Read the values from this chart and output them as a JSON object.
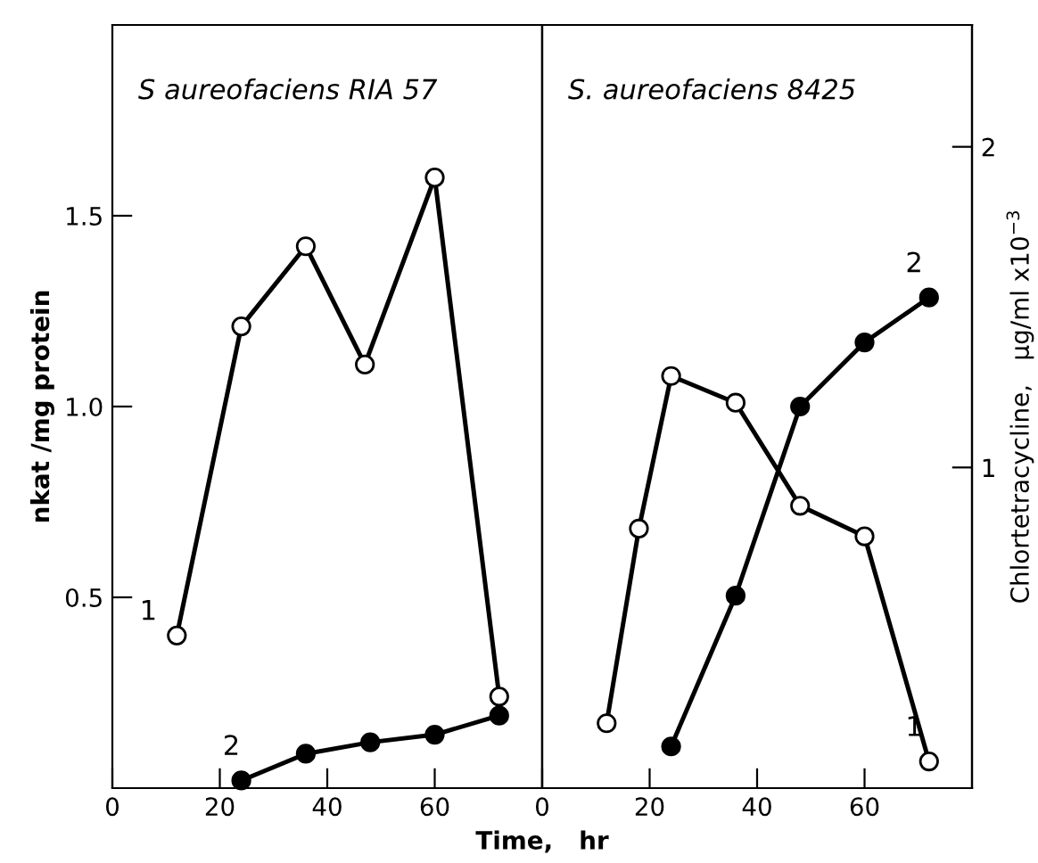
{
  "chart_data": [
    {
      "type": "line",
      "title": "S aureofaciens RIA 57",
      "ylabel": "nkat /mg protein",
      "xlabel": "Time,   hr",
      "xlim": [
        0,
        80
      ],
      "xticks": [
        0,
        20,
        40,
        60
      ],
      "ylim": [
        0,
        2.0
      ],
      "yticks": [
        {
          "value": 0.5,
          "label": "0.5"
        },
        {
          "value": 1.0,
          "label": "1.0"
        },
        {
          "value": 1.5,
          "label": "1.5"
        }
      ],
      "marker": "circle",
      "line_style": "solid",
      "annotations": [
        "1",
        "2"
      ],
      "series": [
        {
          "color": "#000000",
          "x": [
            12,
            24,
            36,
            47,
            60,
            72
          ],
          "values": [
            0.4,
            1.21,
            1.42,
            1.11,
            1.6,
            0.24
          ]
        },
        {
          "color": "#000000",
          "x": [
            24,
            36,
            48,
            60,
            72
          ],
          "values": [
            0.02,
            0.09,
            0.12,
            0.14,
            0.19
          ]
        }
      ]
    },
    {
      "type": "line",
      "title": "S. aureofaciens 8425",
      "y2label": "Chlortetracycline,   µg/ml x10$^{−3}$",
      "xlim": [
        0,
        80
      ],
      "xticks": [
        0,
        20,
        40,
        60
      ],
      "ylim": [
        0,
        2.0
      ],
      "y2lim": [
        0,
        2.38
      ],
      "y2ticks": [
        1,
        2
      ],
      "marker": "circle",
      "line_style": "solid",
      "annotations": [
        "1",
        "2"
      ],
      "series": [
        {
          "color": "#000000",
          "x": [
            12,
            18,
            24,
            36,
            48,
            60,
            72
          ],
          "values": [
            0.17,
            0.68,
            1.08,
            1.01,
            0.74,
            0.66,
            0.07
          ]
        },
        {
          "color": "#000000",
          "axis": "y2",
          "x": [
            24,
            36,
            48,
            60,
            72
          ],
          "values": [
            0.13,
            0.6,
            1.19,
            1.39,
            1.53
          ]
        }
      ]
    }
  ]
}
